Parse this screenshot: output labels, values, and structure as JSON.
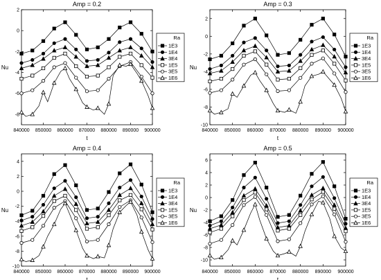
{
  "figure": {
    "legend_title": "Ra",
    "xlabel": "t",
    "ylabel": "Nu"
  },
  "chart_data": [
    {
      "type": "line",
      "title": "Amp = 0.2",
      "xlabel": "t",
      "ylabel": "Nu",
      "xlim": [
        840000,
        900000
      ],
      "ylim": [
        -9,
        2
      ],
      "xticks": [
        840000,
        850000,
        860000,
        870000,
        880000,
        890000,
        900000
      ],
      "yticks": [
        -8,
        -6,
        -4,
        -2,
        0,
        2
      ],
      "legend_title": "Ra",
      "legend_position": "right",
      "series": [
        {
          "name": "1E3",
          "marker": "filled-square",
          "x": [
            840000,
            845000,
            850000,
            855000,
            860000,
            865000,
            870000,
            875000,
            880000,
            885000,
            890000,
            895000,
            900000
          ],
          "y": [
            -2.2,
            -1.9,
            -1.0,
            0.2,
            0.8,
            -0.4,
            -1.8,
            -1.6,
            -0.8,
            0.3,
            0.8,
            -0.3,
            -2.0
          ]
        },
        {
          "name": "1E4",
          "marker": "filled-circle",
          "x": [
            840000,
            845000,
            850000,
            855000,
            860000,
            865000,
            870000,
            875000,
            880000,
            885000,
            890000,
            895000,
            900000
          ],
          "y": [
            -3.1,
            -2.8,
            -2.2,
            -1.2,
            -0.8,
            -1.8,
            -2.9,
            -2.8,
            -2.1,
            -1.1,
            -0.8,
            -1.7,
            -3.0
          ]
        },
        {
          "name": "3E4",
          "marker": "filled-triangle",
          "x": [
            840000,
            845000,
            850000,
            855000,
            860000,
            865000,
            870000,
            875000,
            880000,
            885000,
            890000,
            895000,
            900000
          ],
          "y": [
            -3.6,
            -3.3,
            -2.7,
            -1.9,
            -1.6,
            -2.5,
            -3.4,
            -3.3,
            -2.6,
            -1.9,
            -1.6,
            -2.4,
            -3.5
          ]
        },
        {
          "name": "1E5",
          "marker": "open-square",
          "x": [
            840000,
            845000,
            850000,
            855000,
            860000,
            865000,
            870000,
            875000,
            880000,
            885000,
            890000,
            895000,
            900000
          ],
          "y": [
            -4.6,
            -4.3,
            -3.6,
            -2.6,
            -2.2,
            -3.4,
            -4.4,
            -4.3,
            -3.5,
            -2.5,
            -2.2,
            -3.3,
            -4.5
          ]
        },
        {
          "name": "3E5",
          "marker": "open-circle",
          "x": [
            840000,
            845000,
            850000,
            855000,
            860000,
            865000,
            870000,
            875000,
            880000,
            885000,
            890000,
            895000,
            900000
          ],
          "y": [
            -6.0,
            -5.7,
            -4.8,
            -3.5,
            -3.1,
            -4.5,
            -5.8,
            -5.7,
            -4.6,
            -3.4,
            -3.0,
            -4.4,
            -6.0
          ]
        },
        {
          "name": "1E6",
          "marker": "open-triangle",
          "x": [
            840000,
            842000,
            845000,
            848000,
            850000,
            852000,
            855000,
            858000,
            860000,
            862000,
            865000,
            868000,
            870000,
            873000,
            875000,
            878000,
            880000,
            882000,
            885000,
            888000,
            890000,
            893000,
            895000,
            898000,
            900000
          ],
          "y": [
            -7.8,
            -8.2,
            -8.0,
            -7.2,
            -5.9,
            -6.8,
            -5.0,
            -3.9,
            -3.6,
            -4.6,
            -5.6,
            -6.9,
            -7.3,
            -7.6,
            -7.4,
            -8.0,
            -7.0,
            -4.3,
            -3.3,
            -3.4,
            -3.2,
            -4.1,
            -4.8,
            -6.2,
            -7.4
          ]
        }
      ]
    },
    {
      "type": "line",
      "title": "Amp = 0.3",
      "xlabel": "t",
      "ylabel": "Nu",
      "xlim": [
        840000,
        900000
      ],
      "ylim": [
        -10,
        3
      ],
      "xticks": [
        840000,
        850000,
        860000,
        870000,
        880000,
        890000,
        900000
      ],
      "yticks": [
        -10,
        -8,
        -6,
        -4,
        -2,
        0,
        2
      ],
      "legend_title": "Ra",
      "legend_position": "right",
      "series": [
        {
          "name": "1E3",
          "marker": "filled-square",
          "x": [
            840000,
            845000,
            850000,
            855000,
            860000,
            865000,
            870000,
            875000,
            880000,
            885000,
            890000,
            895000,
            900000
          ],
          "y": [
            -2.6,
            -2.2,
            -0.8,
            1.2,
            2.0,
            0.1,
            -2.1,
            -1.9,
            -0.4,
            1.3,
            2.0,
            0.2,
            -2.3
          ]
        },
        {
          "name": "1E4",
          "marker": "filled-circle",
          "x": [
            840000,
            845000,
            850000,
            855000,
            860000,
            865000,
            870000,
            875000,
            880000,
            885000,
            890000,
            895000,
            900000
          ],
          "y": [
            -3.7,
            -3.3,
            -2.2,
            -0.7,
            -0.2,
            -1.6,
            -3.4,
            -3.3,
            -2.1,
            -0.6,
            -0.1,
            -1.5,
            -3.5
          ]
        },
        {
          "name": "3E4",
          "marker": "filled-triangle",
          "x": [
            840000,
            845000,
            850000,
            855000,
            860000,
            865000,
            870000,
            875000,
            880000,
            885000,
            890000,
            895000,
            900000
          ],
          "y": [
            -4.2,
            -3.9,
            -2.9,
            -1.6,
            -1.1,
            -2.4,
            -4.0,
            -3.9,
            -2.8,
            -1.5,
            -1.0,
            -2.3,
            -4.1
          ]
        },
        {
          "name": "1E5",
          "marker": "open-square",
          "x": [
            840000,
            845000,
            850000,
            855000,
            860000,
            865000,
            870000,
            875000,
            880000,
            885000,
            890000,
            895000,
            900000
          ],
          "y": [
            -5.1,
            -4.8,
            -3.7,
            -2.2,
            -1.7,
            -3.2,
            -4.9,
            -4.8,
            -3.6,
            -2.1,
            -1.6,
            -3.1,
            -5.0
          ]
        },
        {
          "name": "3E5",
          "marker": "open-circle",
          "x": [
            840000,
            845000,
            850000,
            855000,
            860000,
            865000,
            870000,
            875000,
            880000,
            885000,
            890000,
            895000,
            900000
          ],
          "y": [
            -6.4,
            -6.1,
            -4.9,
            -3.2,
            -2.6,
            -4.3,
            -6.2,
            -6.1,
            -4.7,
            -3.1,
            -2.5,
            -4.2,
            -6.3
          ]
        },
        {
          "name": "1E6",
          "marker": "open-triangle",
          "x": [
            840000,
            842000,
            845000,
            848000,
            850000,
            852000,
            855000,
            858000,
            860000,
            862000,
            865000,
            868000,
            870000,
            873000,
            875000,
            878000,
            880000,
            882000,
            885000,
            888000,
            890000,
            893000,
            895000,
            898000,
            900000
          ],
          "y": [
            -8.4,
            -8.8,
            -8.6,
            -8.2,
            -6.5,
            -6.9,
            -5.6,
            -4.4,
            -4.1,
            -5.0,
            -6.1,
            -7.6,
            -8.4,
            -8.6,
            -8.3,
            -8.7,
            -7.4,
            -5.6,
            -4.5,
            -4.3,
            -4.0,
            -4.9,
            -5.5,
            -7.0,
            -8.5
          ]
        }
      ]
    },
    {
      "type": "line",
      "title": "Amp = 0.4",
      "xlabel": "t",
      "ylabel": "Nu",
      "xlim": [
        840000,
        900000
      ],
      "ylim": [
        -10,
        5
      ],
      "xticks": [
        840000,
        850000,
        860000,
        870000,
        880000,
        890000,
        900000
      ],
      "yticks": [
        -10,
        -8,
        -6,
        -4,
        -2,
        0,
        2,
        4
      ],
      "legend_title": "Ra",
      "legend_position": "right",
      "series": [
        {
          "name": "1E3",
          "marker": "filled-square",
          "x": [
            840000,
            845000,
            850000,
            855000,
            860000,
            865000,
            870000,
            875000,
            880000,
            885000,
            890000,
            895000,
            900000
          ],
          "y": [
            -3.2,
            -2.6,
            -0.6,
            2.3,
            3.5,
            0.8,
            -2.5,
            -2.3,
            -0.1,
            2.4,
            3.6,
            0.9,
            -2.8
          ]
        },
        {
          "name": "1E4",
          "marker": "filled-circle",
          "x": [
            840000,
            845000,
            850000,
            855000,
            860000,
            865000,
            870000,
            875000,
            880000,
            885000,
            890000,
            895000,
            900000
          ],
          "y": [
            -3.9,
            -3.4,
            -1.8,
            0.4,
            1.4,
            -0.8,
            -3.6,
            -3.4,
            -1.6,
            0.5,
            1.5,
            -0.7,
            -3.7
          ]
        },
        {
          "name": "3E4",
          "marker": "filled-triangle",
          "x": [
            840000,
            845000,
            850000,
            855000,
            860000,
            865000,
            870000,
            875000,
            880000,
            885000,
            890000,
            895000,
            900000
          ],
          "y": [
            -4.6,
            -4.1,
            -2.7,
            -0.6,
            0.3,
            -1.7,
            -4.3,
            -4.1,
            -2.5,
            -0.5,
            0.4,
            -1.6,
            -4.4
          ]
        },
        {
          "name": "1E5",
          "marker": "open-square",
          "x": [
            840000,
            845000,
            850000,
            855000,
            860000,
            865000,
            870000,
            875000,
            880000,
            885000,
            890000,
            895000,
            900000
          ],
          "y": [
            -5.3,
            -4.8,
            -3.3,
            -1.3,
            -0.6,
            -2.5,
            -5.0,
            -4.8,
            -3.2,
            -1.2,
            -0.5,
            -2.4,
            -5.1
          ]
        },
        {
          "name": "3E5",
          "marker": "open-circle",
          "x": [
            840000,
            845000,
            850000,
            855000,
            860000,
            865000,
            870000,
            875000,
            880000,
            885000,
            890000,
            895000,
            900000
          ],
          "y": [
            -6.9,
            -6.5,
            -4.6,
            -2.2,
            -1.3,
            -3.6,
            -6.7,
            -6.5,
            -4.4,
            -2.1,
            -1.2,
            -3.5,
            -6.8
          ]
        },
        {
          "name": "1E6",
          "marker": "open-triangle",
          "x": [
            840000,
            842000,
            845000,
            848000,
            850000,
            852000,
            855000,
            858000,
            860000,
            862000,
            865000,
            868000,
            870000,
            873000,
            875000,
            878000,
            880000,
            882000,
            885000,
            888000,
            890000,
            893000,
            895000,
            898000,
            900000
          ],
          "y": [
            -9.1,
            -9.4,
            -9.2,
            -8.6,
            -7.4,
            -6.0,
            -4.4,
            -2.4,
            -1.6,
            -3.0,
            -5.2,
            -7.6,
            -8.6,
            -9.0,
            -8.7,
            -8.9,
            -7.2,
            -5.0,
            -2.8,
            -1.9,
            -1.4,
            -3.2,
            -5.4,
            -7.8,
            -9.0
          ]
        }
      ]
    },
    {
      "type": "line",
      "title": "Amp = 0.5",
      "xlabel": "t",
      "ylabel": "Nu",
      "xlim": [
        840000,
        900000
      ],
      "ylim": [
        -11,
        7
      ],
      "xticks": [
        840000,
        850000,
        860000,
        870000,
        880000,
        890000,
        900000
      ],
      "yticks": [
        -10,
        -8,
        -6,
        -4,
        -2,
        0,
        2,
        4,
        6
      ],
      "legend_title": "Ra",
      "legend_position": "right",
      "series": [
        {
          "name": "1E3",
          "marker": "filled-square",
          "x": [
            840000,
            845000,
            850000,
            855000,
            860000,
            865000,
            870000,
            875000,
            880000,
            885000,
            890000,
            895000,
            900000
          ],
          "y": [
            -3.8,
            -3.0,
            -0.4,
            3.6,
            5.6,
            1.6,
            -3.1,
            -2.8,
            0.3,
            3.8,
            5.7,
            1.8,
            -3.4
          ]
        },
        {
          "name": "1E4",
          "marker": "filled-circle",
          "x": [
            840000,
            845000,
            850000,
            855000,
            860000,
            865000,
            870000,
            875000,
            880000,
            885000,
            890000,
            895000,
            900000
          ],
          "y": [
            -4.5,
            -3.8,
            -1.6,
            1.6,
            3.2,
            -0.2,
            -4.1,
            -3.8,
            -1.2,
            1.8,
            3.3,
            -0.1,
            -4.2
          ]
        },
        {
          "name": "3E4",
          "marker": "filled-triangle",
          "x": [
            840000,
            845000,
            850000,
            855000,
            860000,
            865000,
            870000,
            875000,
            880000,
            885000,
            890000,
            895000,
            900000
          ],
          "y": [
            -5.0,
            -4.4,
            -2.4,
            0.3,
            1.4,
            -1.3,
            -4.8,
            -4.5,
            -2.1,
            0.4,
            1.5,
            -1.2,
            -4.9
          ]
        },
        {
          "name": "1E5",
          "marker": "open-square",
          "x": [
            840000,
            845000,
            850000,
            855000,
            860000,
            865000,
            870000,
            875000,
            880000,
            885000,
            890000,
            895000,
            900000
          ],
          "y": [
            -5.6,
            -5.0,
            -3.0,
            -0.4,
            0.8,
            -1.9,
            -5.3,
            -5.0,
            -2.8,
            -0.3,
            0.9,
            -1.8,
            -5.4
          ]
        },
        {
          "name": "3E5",
          "marker": "open-circle",
          "x": [
            840000,
            845000,
            850000,
            855000,
            860000,
            865000,
            870000,
            875000,
            880000,
            885000,
            890000,
            895000,
            900000
          ],
          "y": [
            -7.4,
            -6.8,
            -4.4,
            -1.2,
            0.1,
            -2.8,
            -7.0,
            -6.7,
            -4.1,
            -1.1,
            0.2,
            -2.7,
            -7.1
          ]
        },
        {
          "name": "1E6",
          "marker": "open-triangle",
          "x": [
            840000,
            842000,
            845000,
            848000,
            850000,
            852000,
            855000,
            858000,
            860000,
            862000,
            865000,
            868000,
            870000,
            873000,
            875000,
            878000,
            880000,
            882000,
            885000,
            888000,
            890000,
            893000,
            895000,
            898000,
            900000
          ],
          "y": [
            -9.3,
            -9.9,
            -9.6,
            -8.4,
            -6.9,
            -7.6,
            -5.2,
            -2.5,
            -1.1,
            -3.6,
            -6.6,
            -8.6,
            -9.3,
            -9.0,
            -8.7,
            -9.4,
            -7.8,
            -5.4,
            -2.7,
            -0.6,
            -0.8,
            -3.4,
            -6.2,
            -8.1,
            -8.6
          ]
        }
      ]
    }
  ]
}
